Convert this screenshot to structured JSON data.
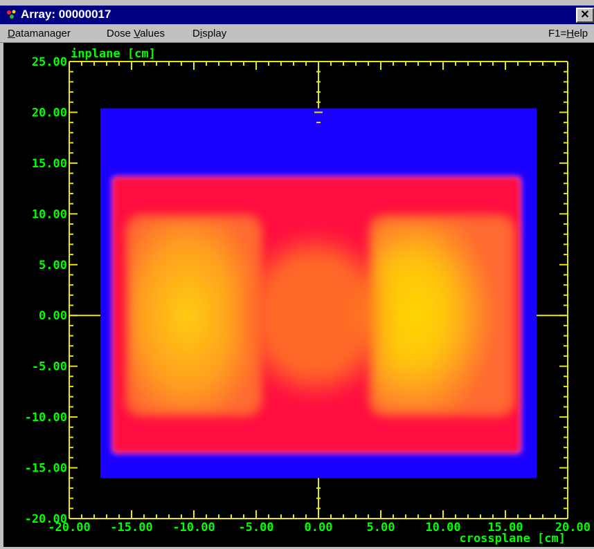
{
  "window": {
    "title": "Array: 00000017",
    "close_glyph": "✕",
    "icon": "array-app-icon"
  },
  "menu": {
    "items": [
      {
        "label": "Datamanager",
        "accel": "D",
        "rest": "atamanager"
      },
      {
        "label": "Dose Values",
        "pre": "Dose ",
        "accel": "V",
        "rest": "alues"
      },
      {
        "label": "Display",
        "pre": "D",
        "accel": "i",
        "rest": "splay"
      }
    ],
    "help": {
      "pre": "F1=",
      "accel": "H",
      "rest": "elp"
    }
  },
  "colors": {
    "axis_color": "#e8e800",
    "label_color": "#00ff00",
    "background": "#000000",
    "low_dose": "#1a00ff",
    "mid_dose": "#ff1040",
    "high_dose": "#ffd400"
  },
  "chart_data": {
    "type": "heatmap",
    "title": "",
    "xlabel": "crossplane [cm]",
    "ylabel": "inplane [cm]",
    "xlim": [
      -20,
      20
    ],
    "ylim": [
      -20,
      25
    ],
    "x_ticks": [
      "-20.00",
      "-15.00",
      "-10.00",
      "-5.00",
      "0.00",
      "5.00",
      "10.00",
      "15.00",
      "20.00"
    ],
    "y_ticks": [
      "25.00",
      "20.00",
      "15.00",
      "10.00",
      "5.00",
      "0.00",
      "-5.00",
      "-10.00",
      "-15.00",
      "-20.00"
    ],
    "grid": false,
    "regions": {
      "low_dose_field": {
        "x": [
          -17.5,
          17.5
        ],
        "y": [
          -16,
          20.4
        ]
      },
      "irradiated_field": {
        "x": [
          -16.5,
          16.2
        ],
        "y": [
          -13.5,
          13.6
        ]
      },
      "left_high_lobe": {
        "x": [
          -15.5,
          -4.5
        ],
        "y": [
          -10,
          10
        ]
      },
      "right_high_lobe": {
        "x": [
          4.0,
          15.8
        ],
        "y": [
          -10,
          10
        ]
      },
      "central_waist": {
        "x": [
          -4.5,
          4.0
        ],
        "y": [
          -5,
          5
        ]
      }
    }
  }
}
